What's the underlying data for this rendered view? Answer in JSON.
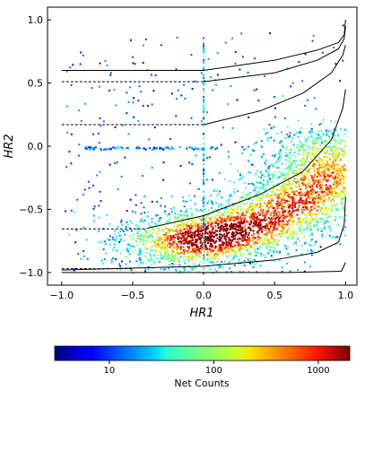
{
  "chart_data": {
    "type": "scatter",
    "title": "",
    "xlabel": "HR1",
    "ylabel": "HR2",
    "xlim": [
      -1.1,
      1.08
    ],
    "ylim": [
      -1.1,
      1.1
    ],
    "x_ticks": [
      -1.0,
      -0.5,
      0.0,
      0.5,
      1.0
    ],
    "y_ticks": [
      -1.0,
      -0.5,
      0.0,
      0.5,
      1.0
    ],
    "x_tick_labels": [
      "−1.0",
      "−0.5",
      "0.0",
      "0.5",
      "1.0"
    ],
    "y_tick_labels": [
      "−1.0",
      "−0.5",
      "0.0",
      "0.5",
      "1.0"
    ],
    "grid": false,
    "legend": "none",
    "colorbar": {
      "label": "Net Counts",
      "scale": "log",
      "colormap": "jet",
      "range": [
        3,
        2000
      ],
      "ticks": [
        10,
        100,
        1000
      ],
      "tick_labels": [
        "10",
        "100",
        "1000"
      ]
    },
    "density_peaks": [
      {
        "x": 0.05,
        "y": -0.72,
        "weight": 1.0
      },
      {
        "x": 0.35,
        "y": -0.62,
        "weight": 0.9
      },
      {
        "x": 0.65,
        "y": -0.45,
        "weight": 0.8
      },
      {
        "x": 0.85,
        "y": -0.25,
        "weight": 0.7
      },
      {
        "x": -0.2,
        "y": -0.75,
        "weight": 0.5
      },
      {
        "x": 0.9,
        "y": -0.05,
        "weight": 0.4
      }
    ],
    "model_curves": [
      {
        "x": [
          -1.0,
          0.0,
          0.5,
          0.8,
          0.95,
          0.99,
          1.0
        ],
        "y": [
          0.6,
          0.6,
          0.68,
          0.76,
          0.82,
          0.88,
          1.0
        ],
        "dashed_x_below": 0.0
      },
      {
        "x": [
          0.0,
          0.5,
          0.8,
          0.95,
          0.99,
          1.0
        ],
        "y": [
          0.51,
          0.58,
          0.68,
          0.77,
          0.85,
          0.95
        ]
      },
      {
        "x": [
          -1.0,
          0.0
        ],
        "y": [
          0.51,
          0.51
        ],
        "dashed": true
      },
      {
        "x": [
          0.0,
          0.4,
          0.7,
          0.9,
          0.98,
          1.0
        ],
        "y": [
          0.17,
          0.28,
          0.42,
          0.58,
          0.72,
          0.8
        ]
      },
      {
        "x": [
          -1.0,
          0.0
        ],
        "y": [
          0.17,
          0.17
        ],
        "dashed": true
      },
      {
        "x": [
          -0.4,
          0.0,
          0.4,
          0.7,
          0.9,
          0.98,
          1.0
        ],
        "y": [
          -0.65,
          -0.55,
          -0.38,
          -0.2,
          0.05,
          0.3,
          0.45
        ]
      },
      {
        "x": [
          -1.0,
          -0.4
        ],
        "y": [
          -0.655,
          -0.655
        ],
        "dashed": true
      },
      {
        "x": [
          -1.0,
          0.0,
          0.5,
          0.8,
          0.95,
          0.99,
          1.0
        ],
        "y": [
          -0.98,
          -0.95,
          -0.9,
          -0.84,
          -0.76,
          -0.62,
          -0.4
        ]
      },
      {
        "x": [
          -1.0,
          -0.5
        ],
        "y": [
          -0.97,
          -0.97
        ],
        "dashed": true
      },
      {
        "x": [
          -1.0,
          0.0,
          0.6,
          0.97,
          1.0
        ],
        "y": [
          -1.0,
          -1.0,
          -1.0,
          -0.99,
          -0.92
        ]
      }
    ]
  }
}
